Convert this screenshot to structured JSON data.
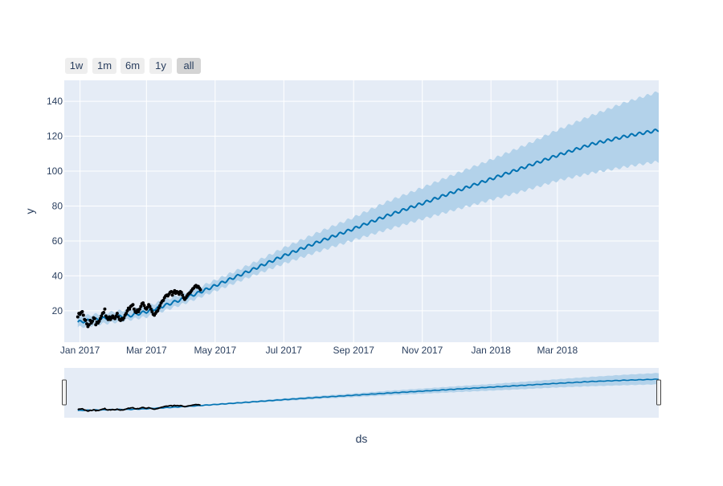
{
  "range_selector": {
    "buttons": [
      {
        "label": "1w",
        "active": false
      },
      {
        "label": "1m",
        "active": false
      },
      {
        "label": "6m",
        "active": false
      },
      {
        "label": "1y",
        "active": false
      },
      {
        "label": "all",
        "active": true
      }
    ]
  },
  "colors": {
    "plot_bg": "#e5ecf6",
    "grid": "#ffffff",
    "forecast_line": "#0072b2",
    "uncertainty_band": "#b3d2ea",
    "actual_points": "#000000",
    "text": "#2a3f5f"
  },
  "chart_data": {
    "type": "line",
    "title": "",
    "xlabel": "ds",
    "ylabel": "y",
    "xlim": [
      "2016-12-18",
      "2018-05-30"
    ],
    "ylim": [
      2,
      152
    ],
    "yticks": [
      20,
      40,
      60,
      80,
      100,
      120,
      140
    ],
    "xticks": [
      {
        "date": "2017-01-01",
        "label": "Jan 2017"
      },
      {
        "date": "2017-03-01",
        "label": "Mar 2017"
      },
      {
        "date": "2017-05-01",
        "label": "May 2017"
      },
      {
        "date": "2017-07-01",
        "label": "Jul 2017"
      },
      {
        "date": "2017-09-01",
        "label": "Sep 2017"
      },
      {
        "date": "2017-11-01",
        "label": "Nov 2017"
      },
      {
        "date": "2018-01-01",
        "label": "Jan 2018"
      },
      {
        "date": "2018-03-01",
        "label": "Mar 2018"
      }
    ],
    "grid": true,
    "legend": "none",
    "range_slider": true,
    "series": [
      {
        "role": "forecast",
        "style": "line",
        "weekly_wiggle_amplitude": 0.8,
        "points": [
          [
            "2016-12-30",
            13.5
          ],
          [
            "2017-01-15",
            15.0
          ],
          [
            "2017-02-01",
            16.5
          ],
          [
            "2017-02-15",
            17.3
          ],
          [
            "2017-03-01",
            19.5
          ],
          [
            "2017-03-15",
            22.5
          ],
          [
            "2017-04-01",
            26.5
          ],
          [
            "2017-04-15",
            30.0
          ],
          [
            "2017-04-26",
            33.0
          ],
          [
            "2017-06-01",
            43.0
          ],
          [
            "2017-07-01",
            51.5
          ],
          [
            "2017-08-01",
            59.5
          ],
          [
            "2017-09-01",
            67.0
          ],
          [
            "2017-10-01",
            74.5
          ],
          [
            "2017-11-01",
            81.5
          ],
          [
            "2017-12-01",
            88.5
          ],
          [
            "2018-01-01",
            95.5
          ],
          [
            "2018-02-01",
            102.5
          ],
          [
            "2018-03-01",
            109.0
          ],
          [
            "2018-04-01",
            115.5
          ],
          [
            "2018-05-01",
            120.0
          ],
          [
            "2018-05-30",
            123.5
          ]
        ]
      },
      {
        "role": "uncertainty interval",
        "style": "band",
        "lower_upper": [
          [
            "2016-12-30",
            10.5,
            16.5
          ],
          [
            "2017-02-01",
            13.5,
            19.5
          ],
          [
            "2017-03-01",
            16.5,
            22.5
          ],
          [
            "2017-04-01",
            23.5,
            29.5
          ],
          [
            "2017-04-26",
            30.0,
            36.0
          ],
          [
            "2017-06-01",
            39.5,
            46.5
          ],
          [
            "2017-07-01",
            47.0,
            56.0
          ],
          [
            "2017-08-01",
            54.0,
            65.0
          ],
          [
            "2017-09-01",
            60.5,
            73.5
          ],
          [
            "2017-10-01",
            66.5,
            82.5
          ],
          [
            "2017-11-01",
            72.5,
            90.5
          ],
          [
            "2017-12-01",
            78.0,
            98.5
          ],
          [
            "2018-01-01",
            83.5,
            106.5
          ],
          [
            "2018-02-01",
            89.0,
            115.0
          ],
          [
            "2018-03-01",
            94.5,
            123.5
          ],
          [
            "2018-04-01",
            99.0,
            132.0
          ],
          [
            "2018-05-01",
            102.5,
            139.5
          ],
          [
            "2018-05-30",
            105.5,
            145.5
          ]
        ]
      },
      {
        "role": "actual",
        "style": "markers",
        "points": [
          [
            "2016-12-30",
            16.5
          ],
          [
            "2016-12-31",
            18.5
          ],
          [
            "2017-01-01",
            18.0
          ],
          [
            "2017-01-02",
            19.0
          ],
          [
            "2017-01-03",
            19.5
          ],
          [
            "2017-01-04",
            17.5
          ],
          [
            "2017-01-05",
            15.0
          ],
          [
            "2017-01-06",
            14.5
          ],
          [
            "2017-01-07",
            12.5
          ],
          [
            "2017-01-08",
            11.0
          ],
          [
            "2017-01-09",
            12.0
          ],
          [
            "2017-01-10",
            14.5
          ],
          [
            "2017-01-11",
            13.0
          ],
          [
            "2017-01-12",
            14.0
          ],
          [
            "2017-01-13",
            16.0
          ],
          [
            "2017-01-14",
            15.5
          ],
          [
            "2017-01-15",
            12.0
          ],
          [
            "2017-01-16",
            13.5
          ],
          [
            "2017-01-17",
            13.0
          ],
          [
            "2017-01-18",
            14.0
          ],
          [
            "2017-01-19",
            15.5
          ],
          [
            "2017-01-20",
            17.0
          ],
          [
            "2017-01-21",
            18.5
          ],
          [
            "2017-01-22",
            19.0
          ],
          [
            "2017-01-23",
            21.0
          ],
          [
            "2017-01-24",
            17.0
          ],
          [
            "2017-01-25",
            16.0
          ],
          [
            "2017-01-26",
            15.0
          ],
          [
            "2017-01-27",
            16.5
          ],
          [
            "2017-01-28",
            15.0
          ],
          [
            "2017-01-29",
            16.0
          ],
          [
            "2017-01-30",
            17.0
          ],
          [
            "2017-01-31",
            16.0
          ],
          [
            "2017-02-01",
            15.5
          ],
          [
            "2017-02-02",
            17.0
          ],
          [
            "2017-02-03",
            18.5
          ],
          [
            "2017-02-04",
            16.5
          ],
          [
            "2017-02-05",
            15.0
          ],
          [
            "2017-02-06",
            14.5
          ],
          [
            "2017-02-07",
            15.5
          ],
          [
            "2017-02-08",
            15.0
          ],
          [
            "2017-02-09",
            16.0
          ],
          [
            "2017-02-10",
            17.5
          ],
          [
            "2017-02-11",
            18.5
          ],
          [
            "2017-02-12",
            20.0
          ],
          [
            "2017-02-13",
            21.5
          ],
          [
            "2017-02-14",
            21.0
          ],
          [
            "2017-02-15",
            22.5
          ],
          [
            "2017-02-16",
            23.0
          ],
          [
            "2017-02-17",
            23.5
          ],
          [
            "2017-02-18",
            21.0
          ],
          [
            "2017-02-19",
            19.5
          ],
          [
            "2017-02-20",
            19.0
          ],
          [
            "2017-02-21",
            20.5
          ],
          [
            "2017-02-22",
            19.5
          ],
          [
            "2017-02-23",
            21.0
          ],
          [
            "2017-02-24",
            22.5
          ],
          [
            "2017-02-25",
            24.0
          ],
          [
            "2017-02-26",
            24.5
          ],
          [
            "2017-02-27",
            23.0
          ],
          [
            "2017-02-28",
            21.5
          ],
          [
            "2017-03-01",
            21.0
          ],
          [
            "2017-03-02",
            22.0
          ],
          [
            "2017-03-03",
            23.5
          ],
          [
            "2017-03-04",
            22.5
          ],
          [
            "2017-03-05",
            21.0
          ],
          [
            "2017-03-06",
            19.5
          ],
          [
            "2017-03-07",
            18.0
          ],
          [
            "2017-03-08",
            17.5
          ],
          [
            "2017-03-09",
            18.5
          ],
          [
            "2017-03-10",
            19.5
          ],
          [
            "2017-03-11",
            20.0
          ],
          [
            "2017-03-12",
            21.5
          ],
          [
            "2017-03-13",
            23.0
          ],
          [
            "2017-03-14",
            24.5
          ],
          [
            "2017-03-15",
            25.5
          ],
          [
            "2017-03-16",
            26.0
          ],
          [
            "2017-03-17",
            27.5
          ],
          [
            "2017-03-18",
            28.5
          ],
          [
            "2017-03-19",
            29.0
          ],
          [
            "2017-03-20",
            28.5
          ],
          [
            "2017-03-21",
            29.5
          ],
          [
            "2017-03-22",
            30.5
          ],
          [
            "2017-03-23",
            31.0
          ],
          [
            "2017-03-24",
            29.0
          ],
          [
            "2017-03-25",
            30.5
          ],
          [
            "2017-03-26",
            31.5
          ],
          [
            "2017-03-27",
            30.0
          ],
          [
            "2017-03-28",
            31.0
          ],
          [
            "2017-03-29",
            30.5
          ],
          [
            "2017-03-30",
            29.5
          ],
          [
            "2017-03-31",
            31.0
          ],
          [
            "2017-04-01",
            30.5
          ],
          [
            "2017-04-02",
            29.0
          ],
          [
            "2017-04-03",
            27.5
          ],
          [
            "2017-04-04",
            26.5
          ],
          [
            "2017-04-05",
            27.5
          ],
          [
            "2017-04-06",
            28.5
          ],
          [
            "2017-04-07",
            29.5
          ],
          [
            "2017-04-08",
            30.0
          ],
          [
            "2017-04-09",
            30.5
          ],
          [
            "2017-04-10",
            31.5
          ],
          [
            "2017-04-11",
            32.5
          ],
          [
            "2017-04-12",
            33.0
          ],
          [
            "2017-04-13",
            34.0
          ],
          [
            "2017-04-14",
            34.5
          ],
          [
            "2017-04-15",
            33.5
          ],
          [
            "2017-04-16",
            34.0
          ],
          [
            "2017-04-17",
            33.0
          ],
          [
            "2017-04-18",
            32.0
          ]
        ]
      }
    ]
  }
}
